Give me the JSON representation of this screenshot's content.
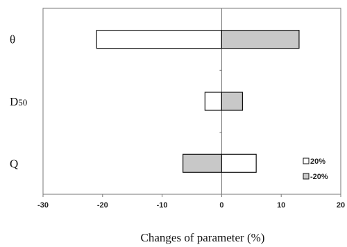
{
  "chart_data": {
    "type": "bar",
    "orientation": "horizontal",
    "title": "",
    "xlabel": "Changes of parameter (%)",
    "ylabel": "",
    "xlim": [
      -30,
      20
    ],
    "xticks": [
      -30,
      -20,
      -10,
      0,
      10,
      20
    ],
    "grid": false,
    "legend_position": "right-bottom",
    "categories": [
      "θ",
      "D50",
      "Q"
    ],
    "series": [
      {
        "name": "20%",
        "color": "#ffffff",
        "values": [
          -21,
          -2.8,
          5.8
        ]
      },
      {
        "name": "-20%",
        "color": "#c8c8c8",
        "values": [
          13,
          3.5,
          -6.5
        ]
      }
    ]
  }
}
